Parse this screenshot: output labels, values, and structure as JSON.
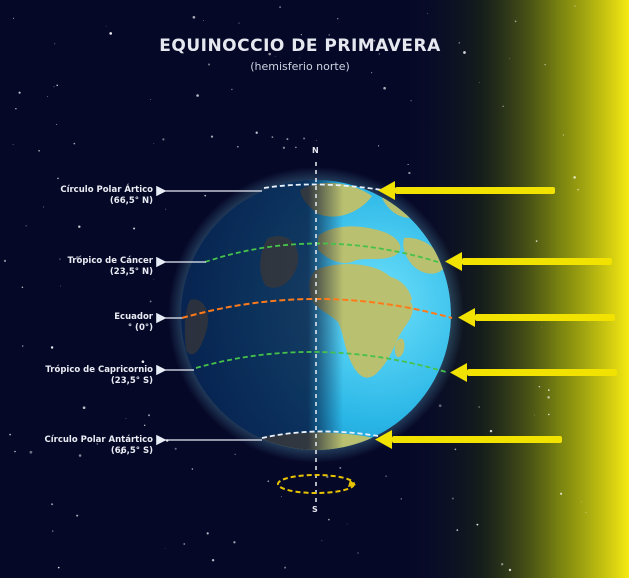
{
  "title": "EQUINOCCIO DE PRIMAVERA",
  "subtitle": "(hemisferio norte)",
  "pole_north": "N",
  "pole_south": "S",
  "lines": [
    {
      "name": "Círculo Polar Ártico",
      "value": "(66,5° N)",
      "color": "#e8f2ff"
    },
    {
      "name": "Trópico de Cáncer",
      "value": "(23,5° N)",
      "color": "#45c24a"
    },
    {
      "name": "Ecuador",
      "value": "° (0°)",
      "color": "#ff7a1a"
    },
    {
      "name": "Trópico de Capricornio",
      "value": "(23,5° S)",
      "color": "#45c24a"
    },
    {
      "name": "Círculo Polar Antártico",
      "value": "(66,5° S)",
      "color": "#e8f2ff"
    }
  ],
  "colors": {
    "space": "#070a2c",
    "ocean_lit": "#33c6ec",
    "ocean_dark": "#0c1d6e",
    "land": "#b9c070",
    "sunlight": "#f2e200",
    "rotation_ring": "#e8c400"
  }
}
